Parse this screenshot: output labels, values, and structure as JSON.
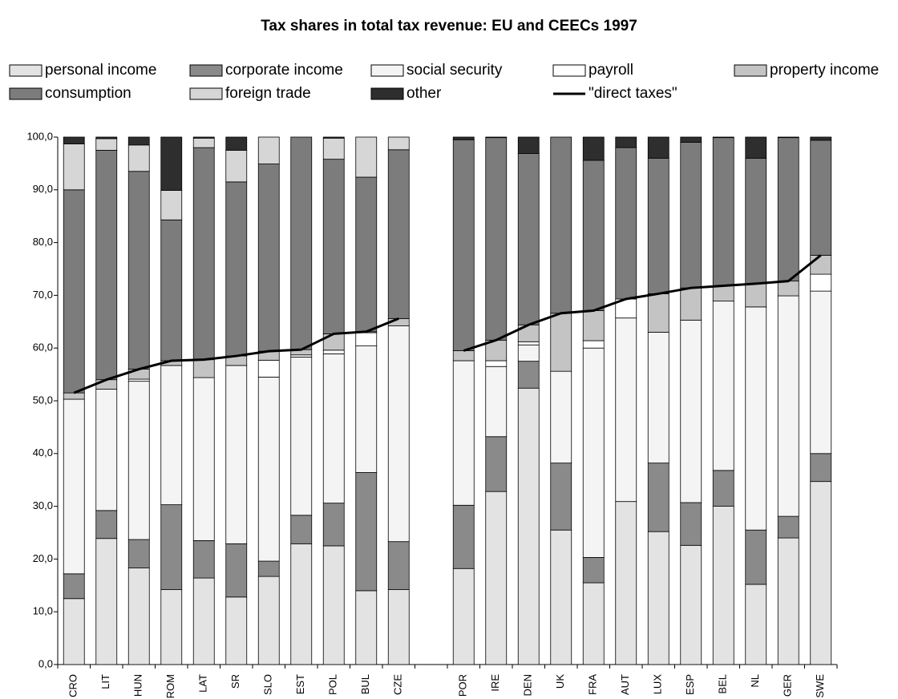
{
  "chart_data": {
    "type": "bar",
    "stacked": true,
    "title": "Tax shares in total tax revenue: EU and CEECs 1997",
    "categories": [
      "CRO",
      "LIT",
      "HUN",
      "ROM",
      "LAT",
      "SR",
      "SLO",
      "EST",
      "POL",
      "BUL",
      "CZE",
      null,
      "POR",
      "IRE",
      "DEN",
      "UK",
      "FRA",
      "AUT",
      "LUX",
      "ESP",
      "BEL",
      "NL",
      "GER",
      "SWE"
    ],
    "ylim": [
      0,
      100
    ],
    "yticks": [
      {
        "value": 0,
        "label": "0,0"
      },
      {
        "value": 10,
        "label": "10,0"
      },
      {
        "value": 20,
        "label": "20,0"
      },
      {
        "value": 30,
        "label": "30,0"
      },
      {
        "value": 40,
        "label": "40,0"
      },
      {
        "value": 50,
        "label": "50,0"
      },
      {
        "value": 60,
        "label": "60,0"
      },
      {
        "value": 70,
        "label": "70,0"
      },
      {
        "value": 80,
        "label": "80,0"
      },
      {
        "value": 90,
        "label": "90,0"
      },
      {
        "value": 100,
        "label": "100,0"
      }
    ],
    "grid": false,
    "series": [
      {
        "name": "personal income",
        "color": "#e3e3e3",
        "values": [
          12.5,
          23.9,
          18.3,
          14.2,
          16.4,
          12.8,
          16.7,
          22.9,
          22.5,
          14.0,
          14.2,
          null,
          18.2,
          32.8,
          52.4,
          25.5,
          15.5,
          30.9,
          25.2,
          22.6,
          30.0,
          15.2,
          24.0,
          34.7
        ]
      },
      {
        "name": "corporate income",
        "color": "#8a8a8a",
        "values": [
          4.7,
          5.3,
          5.4,
          16.1,
          7.1,
          10.1,
          2.9,
          5.4,
          8.1,
          22.4,
          9.1,
          null,
          12.0,
          10.4,
          5.1,
          12.7,
          4.8,
          0,
          13.0,
          8.1,
          6.8,
          10.3,
          4.1,
          5.3
        ]
      },
      {
        "name": "social security",
        "color": "#f4f4f4",
        "values": [
          33.1,
          23.0,
          30.0,
          26.4,
          30.9,
          33.8,
          34.9,
          30.0,
          28.3,
          24.0,
          40.9,
          null,
          27.4,
          13.3,
          3.1,
          17.4,
          39.7,
          34.8,
          24.8,
          34.6,
          32.1,
          42.3,
          41.8,
          30.8
        ]
      },
      {
        "name": "payroll",
        "color": "#ffffff",
        "values": [
          0,
          0,
          0.4,
          0,
          0,
          0,
          3.2,
          0.4,
          0.7,
          2.5,
          0,
          null,
          0,
          1.1,
          0.6,
          0,
          1.4,
          3.6,
          0,
          0,
          0,
          0,
          0,
          3.2
        ]
      },
      {
        "name": "property income",
        "color": "#c4c4c4",
        "values": [
          1.2,
          1.8,
          1.9,
          0.9,
          3.4,
          1.8,
          1.7,
          1.0,
          3.1,
          0.2,
          1.4,
          null,
          1.9,
          3.9,
          3.2,
          11.0,
          5.7,
          0,
          7.3,
          6.1,
          2.9,
          4.4,
          2.8,
          3.6
        ]
      },
      {
        "name": "consumption",
        "color": "#7c7c7c",
        "values": [
          38.5,
          43.5,
          37.5,
          26.7,
          40.2,
          33.0,
          35.5,
          40.3,
          33.1,
          29.3,
          32.0,
          null,
          40.0,
          38.4,
          32.5,
          33.4,
          28.5,
          28.7,
          25.7,
          27.6,
          28.1,
          23.8,
          27.2,
          21.8
        ]
      },
      {
        "name": "foreign trade",
        "color": "#d6d6d6",
        "values": [
          8.7,
          2.2,
          5.0,
          5.6,
          1.8,
          6.0,
          5.1,
          0,
          4.0,
          7.6,
          2.4,
          null,
          0,
          0,
          0,
          0,
          0,
          0,
          0,
          0,
          0,
          0,
          0,
          0
        ]
      },
      {
        "name": "other",
        "color": "#2e2e2e",
        "values": [
          1.3,
          0.3,
          1.5,
          10.1,
          0.2,
          2.5,
          0,
          0,
          0.2,
          0,
          0,
          null,
          0.5,
          0.1,
          3.1,
          0,
          4.4,
          2.0,
          4.0,
          1.0,
          0.1,
          4.0,
          0.1,
          0.6
        ]
      },
      {
        "name": "\"direct taxes\"",
        "type": "line",
        "color": "#000000",
        "values": [
          51.5,
          54.0,
          56.0,
          57.6,
          57.8,
          58.5,
          59.4,
          59.7,
          62.7,
          63.1,
          65.6,
          null,
          59.5,
          61.5,
          64.4,
          66.6,
          67.1,
          69.3,
          70.3,
          71.4,
          71.8,
          72.2,
          72.7,
          77.6
        ]
      }
    ]
  }
}
